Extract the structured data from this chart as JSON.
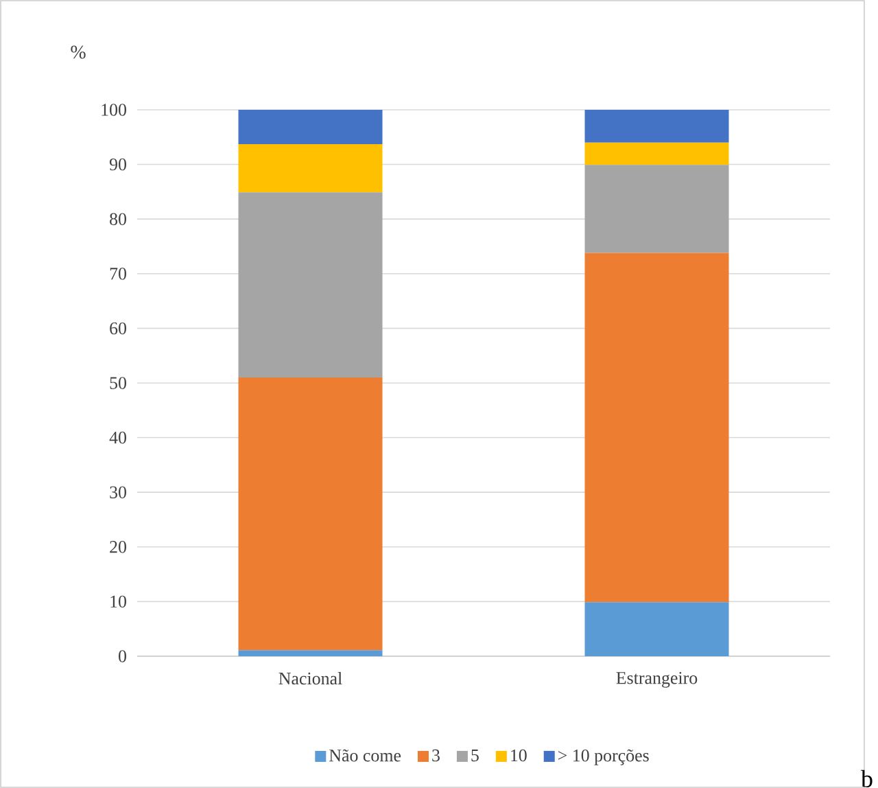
{
  "chart_data": {
    "type": "bar",
    "stacked": true,
    "ylabel": "%",
    "categories": [
      "Nacional",
      "Estrangeiro"
    ],
    "series": [
      {
        "name": "Não come",
        "color": "#5b9bd5",
        "values": [
          1.1,
          9.9
        ]
      },
      {
        "name": "3",
        "color": "#ed7d31",
        "values": [
          49.9,
          63.9
        ]
      },
      {
        "name": "5",
        "color": "#a5a5a5",
        "values": [
          33.9,
          16.1
        ]
      },
      {
        "name": "10",
        "color": "#ffc000",
        "values": [
          8.8,
          4.1
        ]
      },
      {
        "name": "> 10 porções",
        "color": "#4472c4",
        "values": [
          6.3,
          6.0
        ]
      }
    ],
    "ylim": [
      0,
      100
    ],
    "yticks": [
      0,
      10,
      20,
      30,
      40,
      50,
      60,
      70,
      80,
      90,
      100
    ],
    "grid": "y",
    "legend": "bottom",
    "annotations": [
      "b"
    ]
  }
}
